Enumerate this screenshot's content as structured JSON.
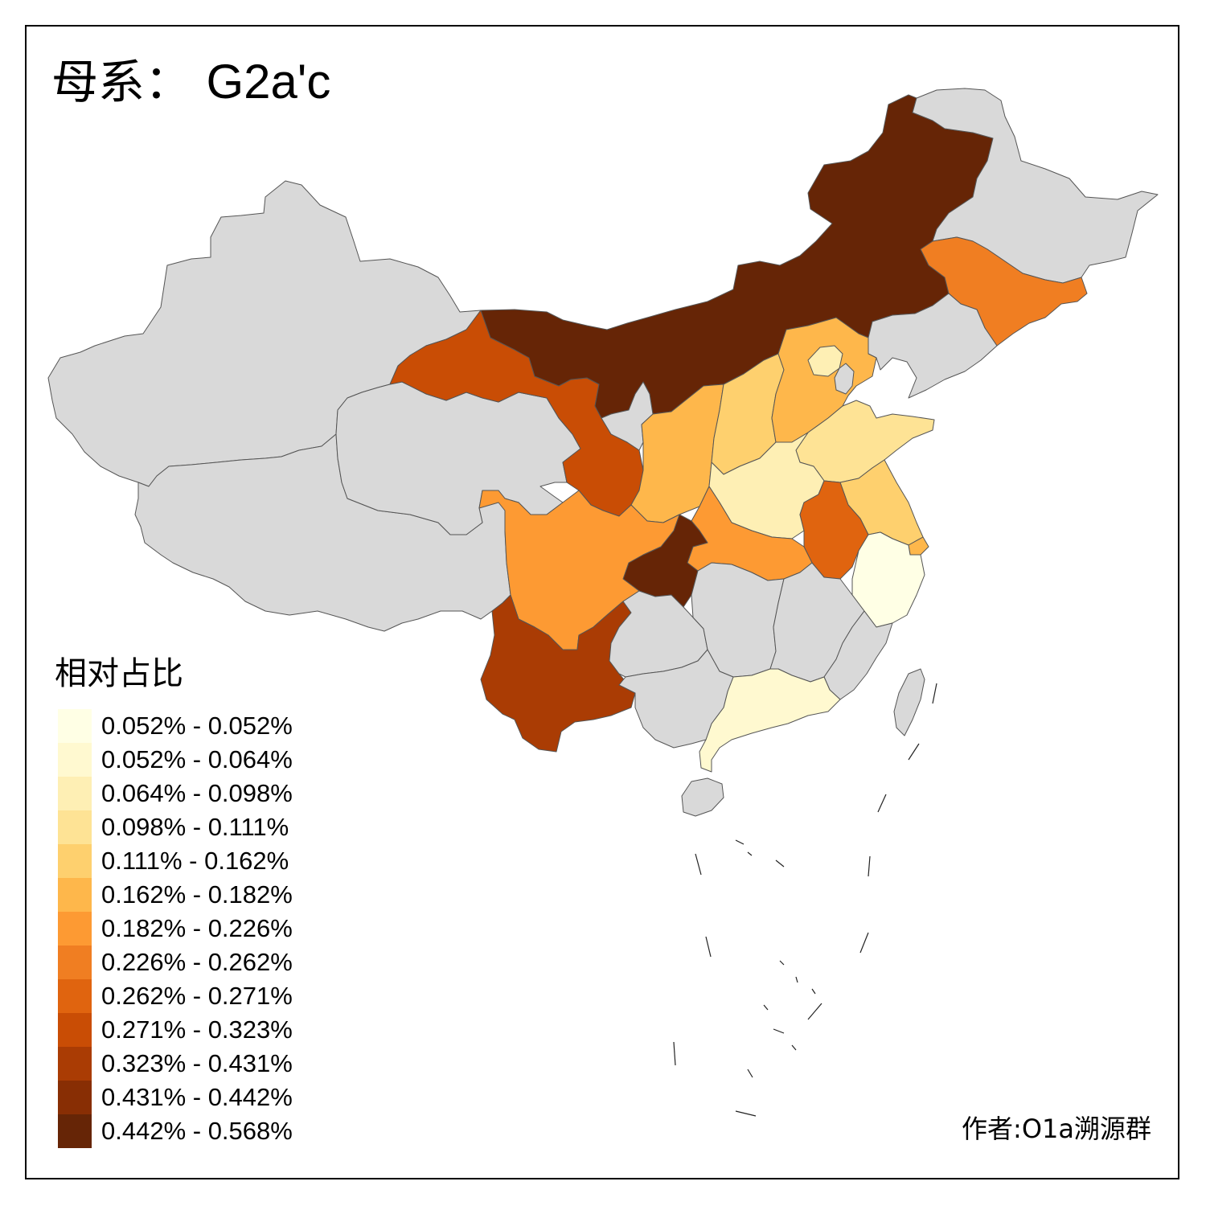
{
  "title": {
    "prefix": "母系：",
    "haplogroup": "G2a'c"
  },
  "legend": {
    "title": "相对占比",
    "classes": [
      {
        "label": "0.052% - 0.052%",
        "color": "#FFFFE5"
      },
      {
        "label": "0.052% - 0.064%",
        "color": "#FFF9D0"
      },
      {
        "label": "0.064% - 0.098%",
        "color": "#FEEFB4"
      },
      {
        "label": "0.098% - 0.111%",
        "color": "#FEE395"
      },
      {
        "label": "0.111% - 0.162%",
        "color": "#FED06E"
      },
      {
        "label": "0.162% - 0.182%",
        "color": "#FEB74B"
      },
      {
        "label": "0.182% - 0.226%",
        "color": "#FD9A33"
      },
      {
        "label": "0.226% - 0.262%",
        "color": "#F07E22"
      },
      {
        "label": "0.262% - 0.271%",
        "color": "#E0640F"
      },
      {
        "label": "0.271% - 0.323%",
        "color": "#C94D05"
      },
      {
        "label": "0.323% - 0.431%",
        "color": "#AA3C04"
      },
      {
        "label": "0.431% - 0.442%",
        "color": "#882E04"
      },
      {
        "label": "0.442% - 0.568%",
        "color": "#662506"
      }
    ]
  },
  "no_data_color": "#D9D9D9",
  "provinces": [
    {
      "id": "xinjiang",
      "class": null
    },
    {
      "id": "tibet",
      "class": null
    },
    {
      "id": "qinghai",
      "class": null
    },
    {
      "id": "gansu",
      "class": 9
    },
    {
      "id": "inner-mongolia",
      "class": 12
    },
    {
      "id": "heilongjiang",
      "class": null
    },
    {
      "id": "jilin",
      "class": 7
    },
    {
      "id": "liaoning",
      "class": null
    },
    {
      "id": "ningxia",
      "class": null
    },
    {
      "id": "shaanxi",
      "class": 5
    },
    {
      "id": "shanxi",
      "class": 4
    },
    {
      "id": "hebei",
      "class": 5
    },
    {
      "id": "beijing",
      "class": 2
    },
    {
      "id": "tianjin",
      "class": null
    },
    {
      "id": "shandong",
      "class": 3
    },
    {
      "id": "henan",
      "class": 2
    },
    {
      "id": "jiangsu",
      "class": 4
    },
    {
      "id": "shanghai",
      "class": 5
    },
    {
      "id": "anhui",
      "class": 8
    },
    {
      "id": "zhejiang",
      "class": 0
    },
    {
      "id": "hubei",
      "class": 6
    },
    {
      "id": "chongqing",
      "class": 12
    },
    {
      "id": "sichuan",
      "class": 6
    },
    {
      "id": "yunnan",
      "class": 10
    },
    {
      "id": "guizhou",
      "class": null
    },
    {
      "id": "hunan",
      "class": null
    },
    {
      "id": "jiangxi",
      "class": null
    },
    {
      "id": "fujian",
      "class": null
    },
    {
      "id": "guangdong",
      "class": 1
    },
    {
      "id": "guangxi",
      "class": null
    },
    {
      "id": "hainan",
      "class": null
    },
    {
      "id": "taiwan",
      "class": null
    }
  ],
  "author": "作者:O1a溯源群"
}
